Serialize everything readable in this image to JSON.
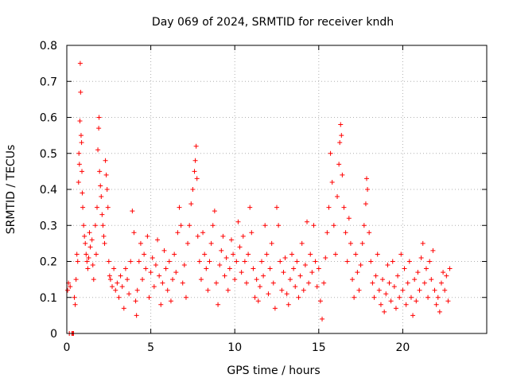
{
  "chart_data": {
    "type": "scatter",
    "title": "Day 069 of 2024, SRMTID for receiver kndh",
    "xlabel": "GPS time / hours",
    "ylabel": "SRMTID / TECUs",
    "xlim": [
      0,
      25
    ],
    "ylim": [
      0,
      0.8
    ],
    "xticks": [
      {
        "value": 0,
        "label": "0"
      },
      {
        "value": 5,
        "label": "5"
      },
      {
        "value": 10,
        "label": "10"
      },
      {
        "value": 15,
        "label": "15"
      },
      {
        "value": 20,
        "label": "20"
      }
    ],
    "yticks": [
      {
        "value": 0,
        "label": "0"
      },
      {
        "value": 0.1,
        "label": "0.1"
      },
      {
        "value": 0.2,
        "label": "0.2"
      },
      {
        "value": 0.3,
        "label": "0.3"
      },
      {
        "value": 0.4,
        "label": "0.4"
      },
      {
        "value": 0.5,
        "label": "0.5"
      },
      {
        "value": 0.6,
        "label": "0.6"
      },
      {
        "value": 0.7,
        "label": "0.7"
      },
      {
        "value": 0.8,
        "label": "0.8"
      }
    ],
    "grid": true,
    "marker": "+",
    "color": "#ff0000",
    "series": [
      {
        "name": "SRMTID",
        "points": [
          [
            0.05,
            0.12
          ],
          [
            0.1,
            0.14
          ],
          [
            0.15,
            0.0
          ],
          [
            0.2,
            0.13
          ],
          [
            0.3,
            0.0
          ],
          [
            0.35,
            0.0
          ],
          [
            0.4,
            0.0
          ],
          [
            0.45,
            0.1
          ],
          [
            0.5,
            0.08
          ],
          [
            0.55,
            0.15
          ],
          [
            0.6,
            0.22
          ],
          [
            0.65,
            0.2
          ],
          [
            0.7,
            0.42
          ],
          [
            0.72,
            0.5
          ],
          [
            0.75,
            0.47
          ],
          [
            0.78,
            0.59
          ],
          [
            0.8,
            0.75
          ],
          [
            0.82,
            0.67
          ],
          [
            0.85,
            0.55
          ],
          [
            0.88,
            0.53
          ],
          [
            0.9,
            0.45
          ],
          [
            0.92,
            0.39
          ],
          [
            0.95,
            0.35
          ],
          [
            1.0,
            0.3
          ],
          [
            1.05,
            0.27
          ],
          [
            1.1,
            0.25
          ],
          [
            1.15,
            0.22
          ],
          [
            1.2,
            0.2
          ],
          [
            1.25,
            0.18
          ],
          [
            1.3,
            0.21
          ],
          [
            1.35,
            0.28
          ],
          [
            1.4,
            0.24
          ],
          [
            1.5,
            0.26
          ],
          [
            1.55,
            0.19
          ],
          [
            1.6,
            0.15
          ],
          [
            1.7,
            0.3
          ],
          [
            1.75,
            0.22
          ],
          [
            1.8,
            0.35
          ],
          [
            1.85,
            0.51
          ],
          [
            1.9,
            0.57
          ],
          [
            1.92,
            0.6
          ],
          [
            1.95,
            0.45
          ],
          [
            2.0,
            0.41
          ],
          [
            2.05,
            0.38
          ],
          [
            2.1,
            0.33
          ],
          [
            2.15,
            0.3
          ],
          [
            2.2,
            0.27
          ],
          [
            2.25,
            0.25
          ],
          [
            2.3,
            0.48
          ],
          [
            2.35,
            0.44
          ],
          [
            2.4,
            0.4
          ],
          [
            2.45,
            0.35
          ],
          [
            2.5,
            0.2
          ],
          [
            2.55,
            0.16
          ],
          [
            2.6,
            0.15
          ],
          [
            2.7,
            0.13
          ],
          [
            2.8,
            0.18
          ],
          [
            2.9,
            0.12
          ],
          [
            3.0,
            0.14
          ],
          [
            3.1,
            0.1
          ],
          [
            3.2,
            0.16
          ],
          [
            3.3,
            0.13
          ],
          [
            3.4,
            0.07
          ],
          [
            3.5,
            0.18
          ],
          [
            3.6,
            0.15
          ],
          [
            3.7,
            0.11
          ],
          [
            3.8,
            0.2
          ],
          [
            3.9,
            0.34
          ],
          [
            4.0,
            0.28
          ],
          [
            4.1,
            0.09
          ],
          [
            4.15,
            0.05
          ],
          [
            4.2,
            0.12
          ],
          [
            4.3,
            0.2
          ],
          [
            4.4,
            0.25
          ],
          [
            4.5,
            0.15
          ],
          [
            4.6,
            0.22
          ],
          [
            4.7,
            0.18
          ],
          [
            4.8,
            0.27
          ],
          [
            4.9,
            0.1
          ],
          [
            5.0,
            0.17
          ],
          [
            5.1,
            0.21
          ],
          [
            5.2,
            0.13
          ],
          [
            5.3,
            0.19
          ],
          [
            5.4,
            0.26
          ],
          [
            5.5,
            0.16
          ],
          [
            5.6,
            0.08
          ],
          [
            5.7,
            0.14
          ],
          [
            5.8,
            0.23
          ],
          [
            5.9,
            0.18
          ],
          [
            6.0,
            0.12
          ],
          [
            6.1,
            0.2
          ],
          [
            6.2,
            0.09
          ],
          [
            6.3,
            0.15
          ],
          [
            6.4,
            0.22
          ],
          [
            6.5,
            0.17
          ],
          [
            6.6,
            0.28
          ],
          [
            6.7,
            0.35
          ],
          [
            6.8,
            0.3
          ],
          [
            6.9,
            0.14
          ],
          [
            7.0,
            0.19
          ],
          [
            7.1,
            0.1
          ],
          [
            7.2,
            0.25
          ],
          [
            7.3,
            0.3
          ],
          [
            7.4,
            0.36
          ],
          [
            7.5,
            0.4
          ],
          [
            7.6,
            0.45
          ],
          [
            7.65,
            0.48
          ],
          [
            7.7,
            0.52
          ],
          [
            7.75,
            0.43
          ],
          [
            7.8,
            0.27
          ],
          [
            7.9,
            0.2
          ],
          [
            8.0,
            0.15
          ],
          [
            8.1,
            0.28
          ],
          [
            8.2,
            0.22
          ],
          [
            8.3,
            0.18
          ],
          [
            8.4,
            0.12
          ],
          [
            8.5,
            0.2
          ],
          [
            8.6,
            0.25
          ],
          [
            8.7,
            0.3
          ],
          [
            8.8,
            0.34
          ],
          [
            8.9,
            0.14
          ],
          [
            9.0,
            0.08
          ],
          [
            9.1,
            0.19
          ],
          [
            9.2,
            0.23
          ],
          [
            9.3,
            0.27
          ],
          [
            9.4,
            0.16
          ],
          [
            9.5,
            0.21
          ],
          [
            9.6,
            0.12
          ],
          [
            9.7,
            0.18
          ],
          [
            9.8,
            0.26
          ],
          [
            9.9,
            0.22
          ],
          [
            10.0,
            0.15
          ],
          [
            10.1,
            0.2
          ],
          [
            10.2,
            0.31
          ],
          [
            10.3,
            0.24
          ],
          [
            10.4,
            0.17
          ],
          [
            10.5,
            0.27
          ],
          [
            10.6,
            0.2
          ],
          [
            10.7,
            0.14
          ],
          [
            10.8,
            0.22
          ],
          [
            10.9,
            0.35
          ],
          [
            11.0,
            0.28
          ],
          [
            11.1,
            0.18
          ],
          [
            11.2,
            0.1
          ],
          [
            11.3,
            0.15
          ],
          [
            11.4,
            0.09
          ],
          [
            11.5,
            0.13
          ],
          [
            11.6,
            0.2
          ],
          [
            11.7,
            0.16
          ],
          [
            11.8,
            0.3
          ],
          [
            11.9,
            0.22
          ],
          [
            12.0,
            0.11
          ],
          [
            12.1,
            0.18
          ],
          [
            12.2,
            0.25
          ],
          [
            12.3,
            0.14
          ],
          [
            12.4,
            0.07
          ],
          [
            12.5,
            0.35
          ],
          [
            12.6,
            0.3
          ],
          [
            12.7,
            0.2
          ],
          [
            12.8,
            0.12
          ],
          [
            12.9,
            0.17
          ],
          [
            13.0,
            0.21
          ],
          [
            13.1,
            0.11
          ],
          [
            13.2,
            0.08
          ],
          [
            13.3,
            0.15
          ],
          [
            13.4,
            0.22
          ],
          [
            13.5,
            0.18
          ],
          [
            13.6,
            0.13
          ],
          [
            13.7,
            0.2
          ],
          [
            13.8,
            0.1
          ],
          [
            13.9,
            0.16
          ],
          [
            14.0,
            0.25
          ],
          [
            14.1,
            0.12
          ],
          [
            14.2,
            0.19
          ],
          [
            14.3,
            0.31
          ],
          [
            14.4,
            0.14
          ],
          [
            14.5,
            0.22
          ],
          [
            14.6,
            0.17
          ],
          [
            14.7,
            0.3
          ],
          [
            14.8,
            0.2
          ],
          [
            14.9,
            0.13
          ],
          [
            15.0,
            0.18
          ],
          [
            15.1,
            0.09
          ],
          [
            15.2,
            0.04
          ],
          [
            15.3,
            0.14
          ],
          [
            15.4,
            0.21
          ],
          [
            15.5,
            0.28
          ],
          [
            15.6,
            0.35
          ],
          [
            15.7,
            0.5
          ],
          [
            15.8,
            0.42
          ],
          [
            15.9,
            0.3
          ],
          [
            16.0,
            0.22
          ],
          [
            16.1,
            0.38
          ],
          [
            16.2,
            0.47
          ],
          [
            16.25,
            0.53
          ],
          [
            16.3,
            0.58
          ],
          [
            16.35,
            0.55
          ],
          [
            16.4,
            0.44
          ],
          [
            16.5,
            0.35
          ],
          [
            16.6,
            0.28
          ],
          [
            16.7,
            0.2
          ],
          [
            16.8,
            0.32
          ],
          [
            16.9,
            0.25
          ],
          [
            17.0,
            0.15
          ],
          [
            17.1,
            0.1
          ],
          [
            17.2,
            0.22
          ],
          [
            17.3,
            0.17
          ],
          [
            17.4,
            0.12
          ],
          [
            17.5,
            0.19
          ],
          [
            17.6,
            0.25
          ],
          [
            17.7,
            0.3
          ],
          [
            17.8,
            0.36
          ],
          [
            17.85,
            0.43
          ],
          [
            17.9,
            0.4
          ],
          [
            18.0,
            0.28
          ],
          [
            18.1,
            0.2
          ],
          [
            18.2,
            0.14
          ],
          [
            18.3,
            0.1
          ],
          [
            18.4,
            0.16
          ],
          [
            18.5,
            0.22
          ],
          [
            18.6,
            0.12
          ],
          [
            18.7,
            0.08
          ],
          [
            18.8,
            0.15
          ],
          [
            18.9,
            0.06
          ],
          [
            19.0,
            0.11
          ],
          [
            19.1,
            0.19
          ],
          [
            19.2,
            0.14
          ],
          [
            19.3,
            0.09
          ],
          [
            19.4,
            0.2
          ],
          [
            19.5,
            0.13
          ],
          [
            19.6,
            0.07
          ],
          [
            19.7,
            0.16
          ],
          [
            19.8,
            0.1
          ],
          [
            19.9,
            0.22
          ],
          [
            20.0,
            0.12
          ],
          [
            20.1,
            0.18
          ],
          [
            20.2,
            0.08
          ],
          [
            20.3,
            0.14
          ],
          [
            20.4,
            0.2
          ],
          [
            20.5,
            0.1
          ],
          [
            20.6,
            0.05
          ],
          [
            20.7,
            0.15
          ],
          [
            20.8,
            0.09
          ],
          [
            20.9,
            0.17
          ],
          [
            21.0,
            0.12
          ],
          [
            21.1,
            0.21
          ],
          [
            21.2,
            0.25
          ],
          [
            21.3,
            0.14
          ],
          [
            21.4,
            0.18
          ],
          [
            21.5,
            0.1
          ],
          [
            21.6,
            0.2
          ],
          [
            21.7,
            0.15
          ],
          [
            21.8,
            0.23
          ],
          [
            21.9,
            0.12
          ],
          [
            22.0,
            0.08
          ],
          [
            22.1,
            0.1
          ],
          [
            22.2,
            0.06
          ],
          [
            22.3,
            0.14
          ],
          [
            22.4,
            0.17
          ],
          [
            22.5,
            0.12
          ],
          [
            22.6,
            0.16
          ],
          [
            22.7,
            0.09
          ],
          [
            22.8,
            0.18
          ]
        ]
      }
    ]
  }
}
